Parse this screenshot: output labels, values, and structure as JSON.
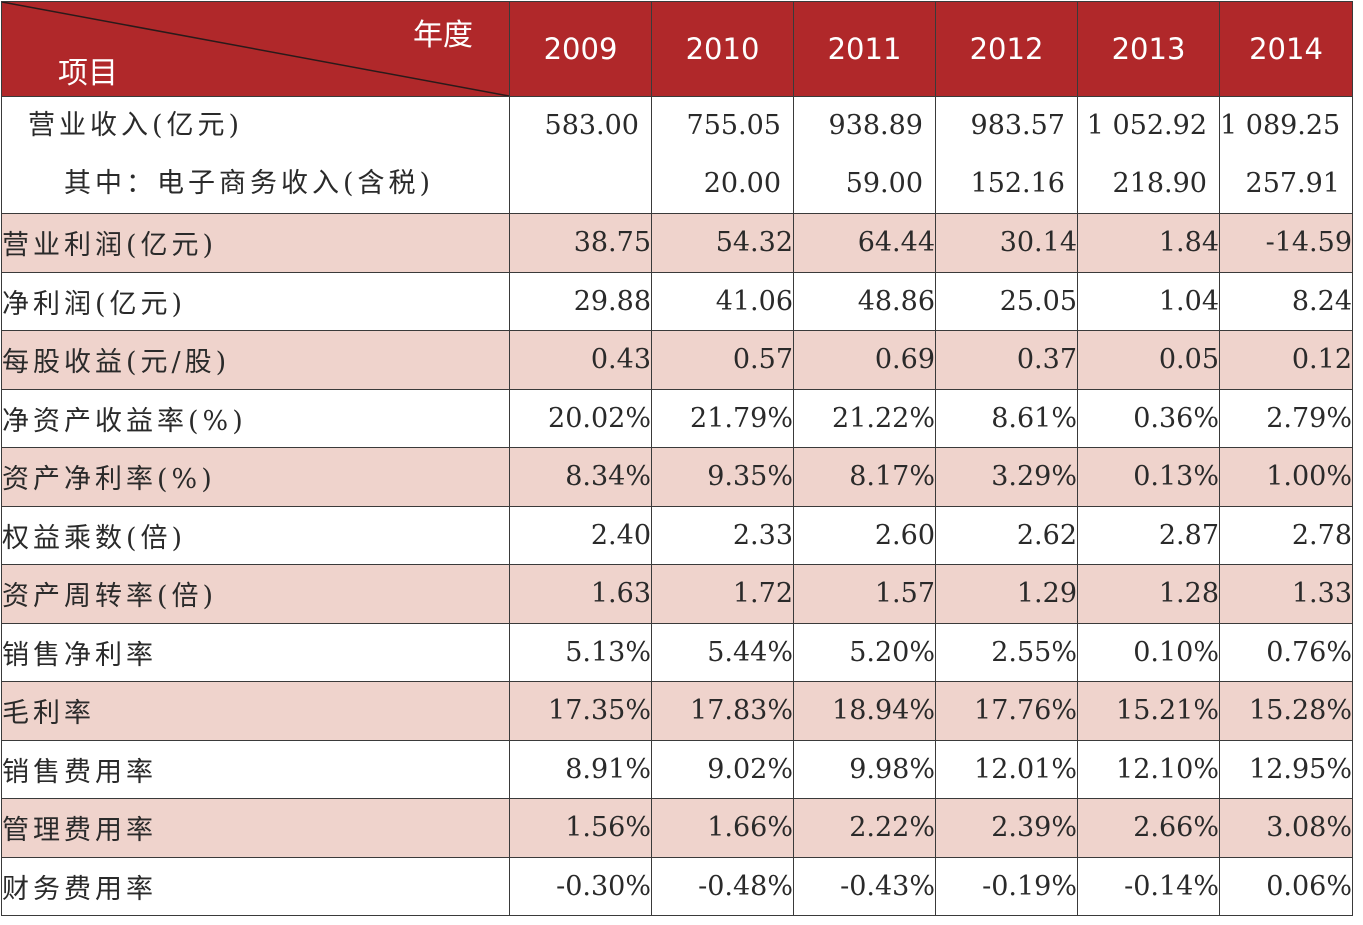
{
  "header": {
    "corner_top": "年度",
    "corner_bottom": "项目",
    "years": [
      "2009",
      "2010",
      "2011",
      "2012",
      "2013",
      "2014"
    ]
  },
  "revenue": {
    "label": "营业收入(亿元)",
    "sublabel": "其中：电子商务收入(含税)",
    "values": [
      "583.00",
      "755.05",
      "938.89",
      "983.57",
      "1 052.92",
      "1 089.25"
    ],
    "subvalues": [
      "",
      "20.00",
      "59.00",
      "152.16",
      "218.90",
      "257.91"
    ]
  },
  "rows": [
    {
      "label": "营业利润(亿元)",
      "values": [
        "38.75",
        "54.32",
        "64.44",
        "30.14",
        "1.84",
        "-14.59"
      ]
    },
    {
      "label": "净利润(亿元)",
      "values": [
        "29.88",
        "41.06",
        "48.86",
        "25.05",
        "1.04",
        "8.24"
      ]
    },
    {
      "label": "每股收益(元/股)",
      "values": [
        "0.43",
        "0.57",
        "0.69",
        "0.37",
        "0.05",
        "0.12"
      ]
    },
    {
      "label": "净资产收益率(%)",
      "values": [
        "20.02%",
        "21.79%",
        "21.22%",
        "8.61%",
        "0.36%",
        "2.79%"
      ]
    },
    {
      "label": "资产净利率(%)",
      "values": [
        "8.34%",
        "9.35%",
        "8.17%",
        "3.29%",
        "0.13%",
        "1.00%"
      ]
    },
    {
      "label": "权益乘数(倍)",
      "values": [
        "2.40",
        "2.33",
        "2.60",
        "2.62",
        "2.87",
        "2.78"
      ]
    },
    {
      "label": "资产周转率(倍)",
      "values": [
        "1.63",
        "1.72",
        "1.57",
        "1.29",
        "1.28",
        "1.33"
      ]
    },
    {
      "label": "销售净利率",
      "values": [
        "5.13%",
        "5.44%",
        "5.20%",
        "2.55%",
        "0.10%",
        "0.76%"
      ]
    },
    {
      "label": "毛利率",
      "values": [
        "17.35%",
        "17.83%",
        "18.94%",
        "17.76%",
        "15.21%",
        "15.28%"
      ]
    },
    {
      "label": "销售费用率",
      "values": [
        "8.91%",
        "9.02%",
        "9.98%",
        "12.01%",
        "12.10%",
        "12.95%"
      ]
    },
    {
      "label": "管理费用率",
      "values": [
        "1.56%",
        "1.66%",
        "2.22%",
        "2.39%",
        "2.66%",
        "3.08%"
      ]
    },
    {
      "label": "财务费用率",
      "values": [
        "-0.30%",
        "-0.48%",
        "-0.43%",
        "-0.19%",
        "-0.14%",
        "0.06%"
      ]
    }
  ],
  "colors": {
    "header_bg": "#b0282a",
    "shade_bg": "#efd3cc",
    "border": "#3a3a3a"
  }
}
